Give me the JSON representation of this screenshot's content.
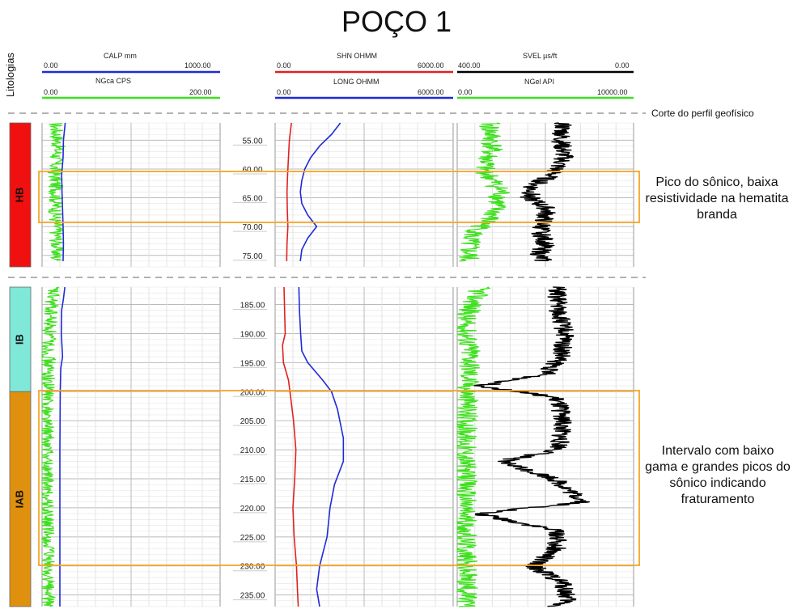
{
  "title": "POÇO 1",
  "lithology_header": "Litologias",
  "cut_label": "Corte do perfil geofísico",
  "tracks": {
    "track1": {
      "curve1": {
        "name": "CALP",
        "unit": "mm",
        "label": "CALP  mm",
        "min_label": "0.00",
        "max_label": "1000.00",
        "color": "#1f2bd6"
      },
      "curve2": {
        "name": "NGca",
        "unit": "CPS",
        "label": "NGca  CPS",
        "min_label": "0.00",
        "max_label": "200.00",
        "color": "#3fe01f"
      }
    },
    "track2": {
      "curve1": {
        "name": "SHN",
        "unit": "OHMM",
        "label": "SHN  OHMM",
        "min_label": "0.00",
        "max_label": "6000.00",
        "color": "#e02020"
      },
      "curve2": {
        "name": "LONG",
        "unit": "OHMM",
        "label": "LONG  OHMM",
        "min_label": "0.00",
        "max_label": "6000.00",
        "color": "#1f2bd6"
      }
    },
    "track3": {
      "curve1": {
        "name": "SVEL",
        "unit": "µs/ft",
        "label": "SVEL  µs/ft",
        "min_label": "400.00",
        "max_label": "0.00",
        "color": "#000000"
      },
      "curve2": {
        "name": "NGel",
        "unit": "API",
        "label": "NGel  API",
        "min_label": "0.00",
        "max_label": "10000.00",
        "color": "#3fe01f"
      }
    }
  },
  "annotations": {
    "upper": "Pico do sônico, baixa resistividade na hematita branda",
    "lower": "Intervalo com baixo gama e grandes picos do sônico indicando fraturamento"
  },
  "colors": {
    "annotation_box": "#f5a623",
    "HB": "#f01010",
    "IB": "#7fe8d8",
    "IAB": "#e0900f"
  },
  "chart_data": {
    "type": "line",
    "title": "POÇO 1",
    "panels": [
      {
        "depth_ticks": [
          "55.00",
          "60.00",
          "65.00",
          "70.00",
          "75.00"
        ],
        "depth_range": [
          52,
          77
        ],
        "lithology": [
          {
            "label": "HB",
            "top": 52,
            "bottom": 77
          }
        ],
        "highlight_interval": [
          60.3,
          68.6
        ],
        "series": {
          "CALP": {
            "depth": [
              52,
              55,
              58,
              61,
              64,
              67,
              70,
              73,
              76
            ],
            "values": [
              130,
              120,
              118,
              110,
              112,
              115,
              118,
              120,
              118
            ]
          },
          "SHN": {
            "depth": [
              52,
              55,
              58,
              61,
              64,
              67,
              70,
              73,
              76
            ],
            "values": [
              550,
              480,
              450,
              420,
              400,
              410,
              430,
              400,
              390
            ]
          },
          "LONG": {
            "depth": [
              52,
              54,
              56,
              58,
              60,
              62,
              64,
              66,
              68,
              70,
              72,
              74,
              76
            ],
            "values": [
              2200,
              1900,
              1500,
              1200,
              1000,
              900,
              850,
              900,
              1100,
              1400,
              1100,
              900,
              850
            ]
          },
          "NGca": {
            "depth": [
              52,
              56,
              60,
              64,
              68,
              72,
              76
            ],
            "values": [
              15,
              18,
              14,
              16,
              15,
              17,
              16
            ]
          },
          "SVEL": {
            "depth": [
              52,
              55,
              58,
              61,
              63,
              65,
              67,
              69,
              71,
              73,
              75,
              76
            ],
            "values": [
              160,
              165,
              158,
              185,
              230,
              235,
              195,
              205,
              210,
              200,
              215,
              205
            ]
          },
          "NGel": {
            "depth": [
              52,
              56,
              60,
              64,
              68,
              72,
              76
            ],
            "values": [
              1800,
              2000,
              1500,
              2500,
              2000,
              700,
              600
            ]
          }
        }
      },
      {
        "depth_ticks": [
          "185.00",
          "190.00",
          "195.00",
          "200.00",
          "205.00",
          "210.00",
          "215.00",
          "220.00",
          "225.00",
          "230.00",
          "235.00"
        ],
        "depth_range": [
          182,
          237
        ],
        "lithology": [
          {
            "label": "IB",
            "top": 182,
            "bottom": 200
          },
          {
            "label": "IAB",
            "top": 200,
            "bottom": 237
          }
        ],
        "highlight_interval": [
          200.5,
          230.5
        ],
        "series": {
          "CALP": {
            "depth": [
              182,
              184,
              186,
              190,
              194,
              196,
              200,
              210,
              220,
              230,
              237
            ],
            "values": [
              128,
              120,
              110,
              108,
              115,
              105,
              102,
              100,
              100,
              100,
              100
            ]
          },
          "SHN": {
            "depth": [
              182,
              186,
              190,
              192,
              195,
              198,
              200,
              205,
              210,
              215,
              220,
              225,
              230,
              235,
              237
            ],
            "values": [
              300,
              320,
              340,
              250,
              280,
              450,
              500,
              620,
              700,
              660,
              600,
              640,
              720,
              760,
              780
            ]
          },
          "LONG": {
            "depth": [
              182,
              186,
              190,
              193,
              195,
              198,
              200,
              203,
              208,
              212,
              216,
              220,
              225,
              230,
              234,
              237
            ],
            "values": [
              800,
              820,
              860,
              900,
              1100,
              1600,
              1900,
              2100,
              2300,
              2300,
              2000,
              1850,
              1750,
              1500,
              1400,
              1500
            ]
          },
          "NGca": {
            "depth": [
              182,
              190,
              200,
              210,
              220,
              230,
              237
            ],
            "values": [
              12,
              8,
              6,
              5,
              5,
              6,
              7
            ]
          },
          "SVEL": {
            "depth": [
              182,
              186,
              190,
              194,
              197,
              199,
              201,
              204,
              207,
              210,
              212,
              215,
              218,
              219,
              221,
              224,
              227,
              230,
              233,
              236,
              237
            ],
            "values": [
              175,
              170,
              155,
              165,
              200,
              345,
              180,
              160,
              165,
              170,
              300,
              180,
              130,
              110,
              355,
              170,
              175,
              230,
              160,
              150,
              180
            ]
          },
          "NGel": {
            "depth": [
              182,
              188,
              194,
              200,
              206,
              212,
              218,
              224,
              230,
              237
            ],
            "values": [
              1300,
              400,
              800,
              600,
              500,
              450,
              500,
              450,
              500,
              550
            ]
          }
        }
      }
    ]
  }
}
